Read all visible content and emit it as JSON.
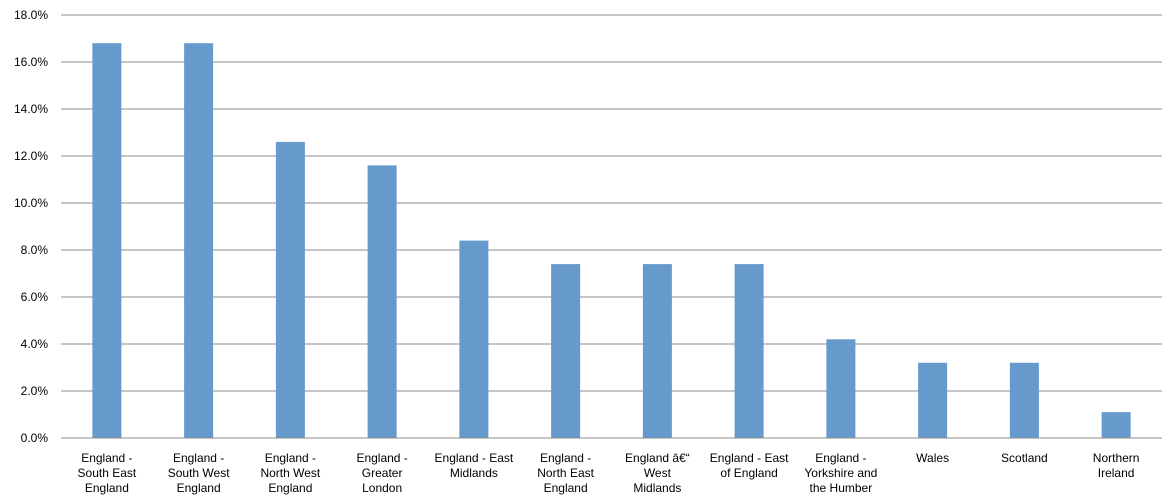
{
  "chart_data": {
    "type": "bar",
    "title": "",
    "xlabel": "",
    "ylabel": "",
    "ylim": [
      0,
      18
    ],
    "y_ticks": [
      "0.0%",
      "2.0%",
      "4.0%",
      "6.0%",
      "8.0%",
      "10.0%",
      "12.0%",
      "14.0%",
      "16.0%",
      "18.0%"
    ],
    "grid": true,
    "legend": "none",
    "bar_color": "#6699CC",
    "categories": [
      [
        "England -",
        "South East",
        "England"
      ],
      [
        "England -",
        "South West",
        "England"
      ],
      [
        "England -",
        "North West",
        "England"
      ],
      [
        "England -",
        "Greater",
        "London"
      ],
      [
        "England - East",
        "Midlands"
      ],
      [
        "England -",
        "North East",
        "England"
      ],
      [
        "England â€“",
        "West",
        "Midlands"
      ],
      [
        "England - East",
        "of England"
      ],
      [
        "England -",
        "Yorkshire and",
        "the Humber"
      ],
      [
        "Wales"
      ],
      [
        "Scotland"
      ],
      [
        "Northern",
        "Ireland"
      ]
    ],
    "values": [
      16.8,
      16.8,
      12.6,
      11.6,
      8.4,
      7.4,
      7.4,
      7.4,
      4.2,
      3.2,
      3.2,
      1.1
    ]
  }
}
